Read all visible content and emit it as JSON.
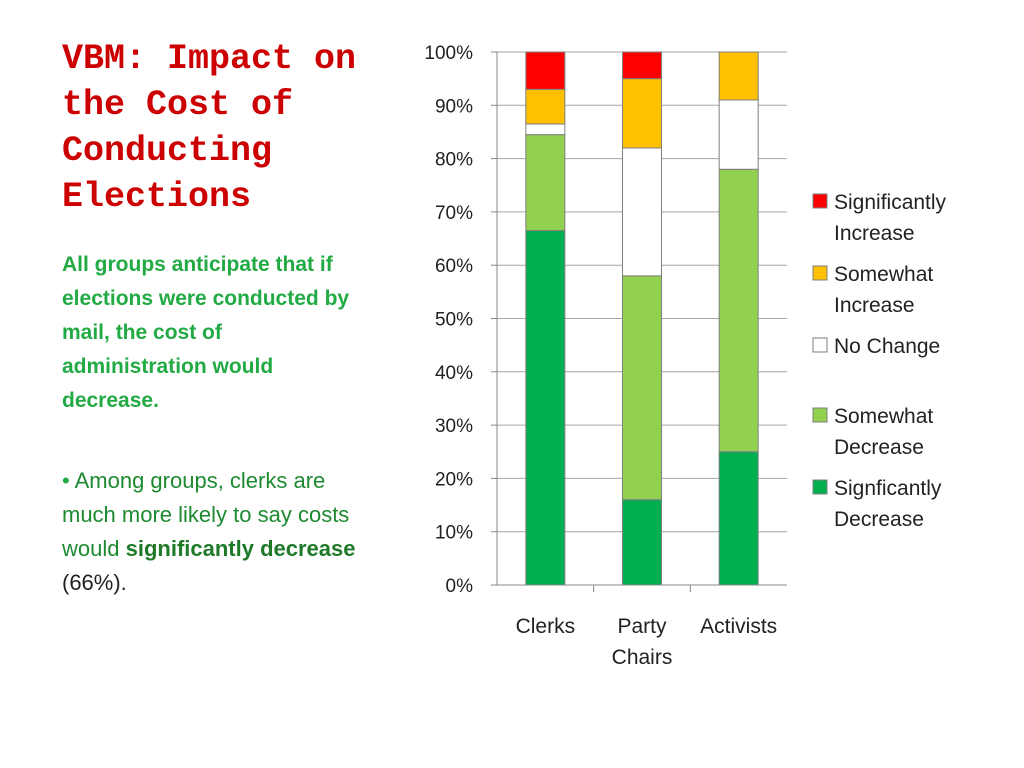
{
  "slide": {
    "title": "VBM: Impact on the Cost of Conducting Elections",
    "intro": "All groups anticipate that if elections were conducted by mail, the cost of administration would decrease.",
    "bullet": {
      "marker": "•",
      "lead": "Among groups, clerks are",
      "body": "much more likely to say costs would",
      "emphasis": "significantly decrease",
      "tail": "(66%)."
    }
  },
  "chart_data": {
    "type": "bar",
    "stacked": true,
    "percent": true,
    "categories": [
      [
        "Clerks"
      ],
      [
        "Party",
        "Chairs"
      ],
      [
        "Activists"
      ]
    ],
    "series": [
      {
        "name": "Signficantly Decrease",
        "legend_lines": [
          "Signficantly",
          "Decrease"
        ],
        "color": "#00b050",
        "values": [
          66.5,
          16,
          25
        ]
      },
      {
        "name": "Somewhat Decrease",
        "legend_lines": [
          "Somewhat",
          "Decrease"
        ],
        "color": "#92d050",
        "values": [
          18,
          42,
          53
        ]
      },
      {
        "name": "No Change",
        "legend_lines": [
          "No Change"
        ],
        "color": "#ffffff",
        "values": [
          2,
          24,
          13
        ]
      },
      {
        "name": "Somewhat Increase",
        "legend_lines": [
          "Somewhat",
          "Increase"
        ],
        "color": "#ffc000",
        "values": [
          6.5,
          13,
          9
        ]
      },
      {
        "name": "Significantly Increase",
        "legend_lines": [
          "Significantly",
          "Increase"
        ],
        "color": "#ff0000",
        "values": [
          7,
          5,
          0
        ]
      }
    ],
    "legend_order": [
      4,
      3,
      2,
      1,
      0
    ],
    "ylim": [
      0,
      100
    ],
    "yticks": [
      "0%",
      "10%",
      "20%",
      "30%",
      "40%",
      "50%",
      "60%",
      "70%",
      "80%",
      "90%",
      "100%"
    ],
    "grid": true,
    "legend_position": "right",
    "title": "",
    "xlabel": "",
    "ylabel": ""
  }
}
